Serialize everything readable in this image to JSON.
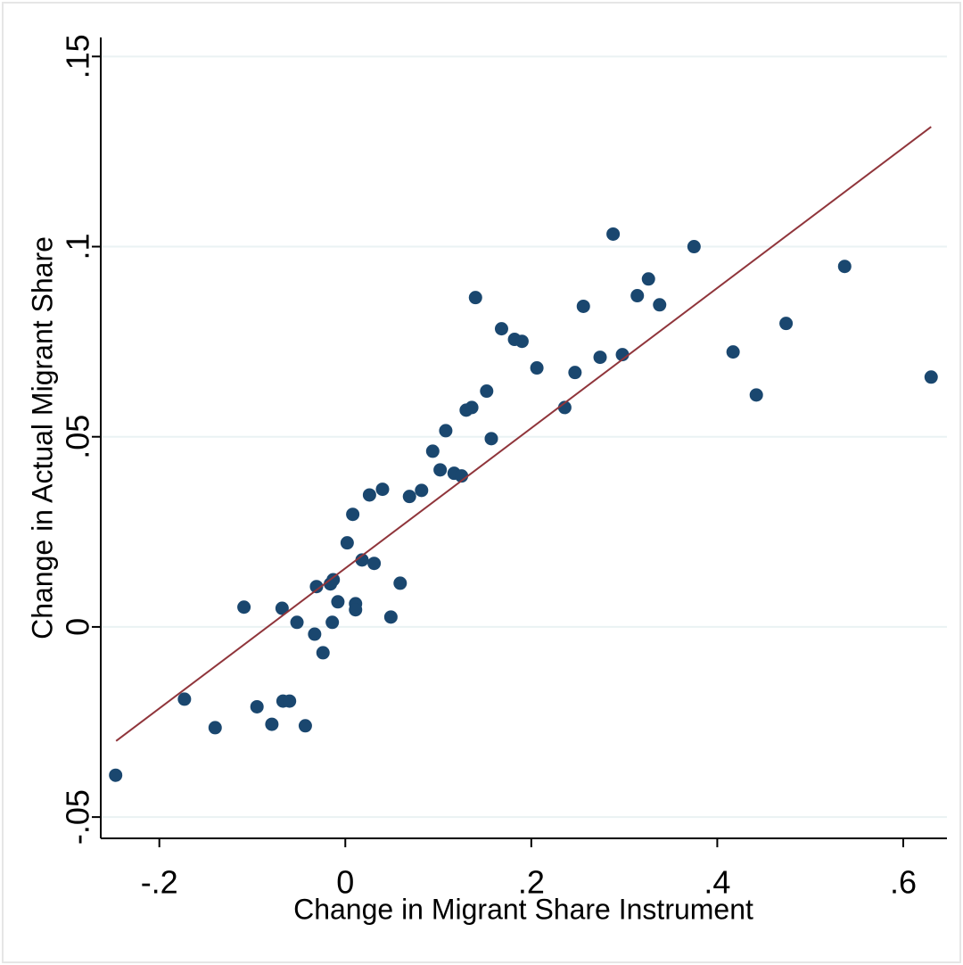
{
  "chart_data": {
    "type": "scatter",
    "x_label": "Change in Migrant Share Instrument",
    "y_label": "Change in Actual Migrant Share",
    "xlim": [
      -0.263,
      0.647
    ],
    "ylim": [
      -0.0556,
      0.155
    ],
    "xticks": [
      {
        "value": -0.2,
        "label": "-.2"
      },
      0,
      {
        "value": 0.2,
        "label": ".2"
      },
      {
        "value": 0.4,
        "label": ".4"
      },
      {
        "value": 0.6,
        "label": ".6"
      }
    ],
    "yticks": [
      {
        "value": -0.05,
        "label": "-.05"
      },
      0,
      {
        "value": 0.05,
        "label": ".05"
      },
      {
        "value": 0.1,
        "label": ".1"
      },
      {
        "value": 0.15,
        "label": ".15"
      }
    ],
    "grid": true,
    "series": [
      {
        "color": "#1a476f",
        "x": [
          -0.247,
          -0.173,
          -0.14,
          -0.109,
          -0.095,
          -0.079,
          -0.068,
          -0.067,
          -0.06,
          -0.052,
          -0.043,
          -0.033,
          -0.031,
          -0.024,
          -0.016,
          -0.014,
          -0.013,
          -0.008,
          0.002,
          0.008,
          0.011,
          0.011,
          0.018,
          0.026,
          0.031,
          0.04,
          0.049,
          0.059,
          0.069,
          0.082,
          0.094,
          0.102,
          0.108,
          0.117,
          0.125,
          0.13,
          0.136,
          0.14,
          0.152,
          0.157,
          0.168,
          0.182,
          0.19,
          0.206,
          0.236,
          0.247,
          0.256,
          0.274,
          0.288,
          0.298,
          0.314,
          0.326,
          0.338,
          0.375,
          0.417,
          0.442,
          0.474,
          0.537,
          0.63
        ],
        "values": [
          -0.039,
          -0.019,
          -0.0265,
          0.0052,
          -0.021,
          -0.0256,
          0.0049,
          -0.0195,
          -0.0195,
          0.0012,
          -0.026,
          -0.0019,
          0.0106,
          -0.0068,
          0.0113,
          0.0012,
          0.0124,
          0.0066,
          0.0221,
          0.0296,
          0.0061,
          0.0045,
          0.0176,
          0.0347,
          0.0167,
          0.0362,
          0.0026,
          0.0115,
          0.0343,
          0.0359,
          0.0462,
          0.0413,
          0.0516,
          0.0404,
          0.0397,
          0.057,
          0.0577,
          0.0866,
          0.062,
          0.0495,
          0.0784,
          0.0756,
          0.0751,
          0.0681,
          0.0577,
          0.0669,
          0.0843,
          0.0709,
          0.1033,
          0.0716,
          0.0871,
          0.0915,
          0.0847,
          0.1,
          0.0723,
          0.061,
          0.0798,
          0.0948,
          0.0657
        ]
      }
    ],
    "fit": {
      "color": "#90353b",
      "x": [
        -0.2465,
        0.63
      ],
      "values": [
        -0.03,
        0.1315
      ]
    }
  }
}
